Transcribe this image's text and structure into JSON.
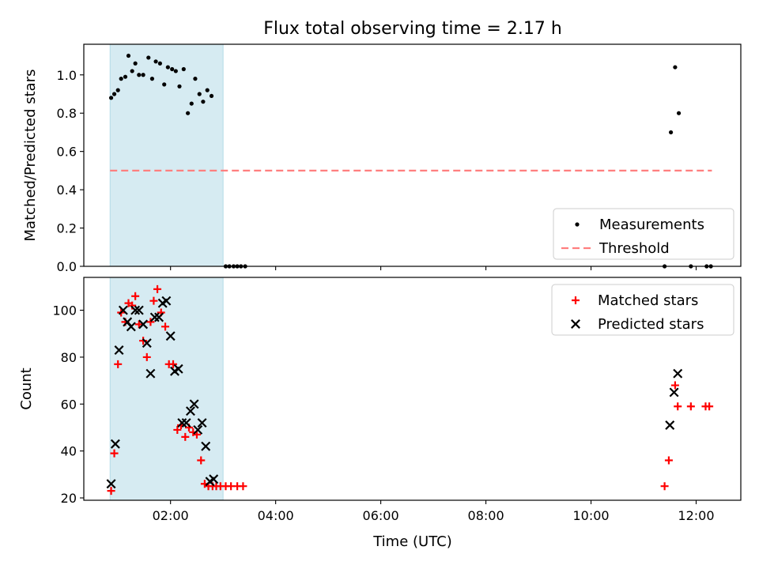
{
  "chart_data": {
    "title": "Flux total observing time = 2.17 h",
    "xlabel": "Time (UTC)",
    "x_units": "hours UTC",
    "xlim": [
      0.35,
      12.85
    ],
    "xticks": [
      {
        "value": 2,
        "label": "02:00"
      },
      {
        "value": 4,
        "label": "04:00"
      },
      {
        "value": 6,
        "label": "06:00"
      },
      {
        "value": 8,
        "label": "08:00"
      },
      {
        "value": 10,
        "label": "10:00"
      },
      {
        "value": 12,
        "label": "12:00"
      }
    ],
    "highlight_span": {
      "x0": 0.85,
      "x1": 3.0,
      "color": "#add8e6"
    },
    "panels": [
      {
        "type": "scatter",
        "ylabel": "Matched/Predicted stars",
        "ylim": [
          0,
          1.16
        ],
        "yticks": [
          0.0,
          0.2,
          0.4,
          0.6,
          0.8,
          1.0
        ],
        "ytick_labels": [
          "0.0",
          "0.2",
          "0.4",
          "0.6",
          "0.8",
          "1.0"
        ],
        "legend_position": "lower-right",
        "series": [
          {
            "name": "Measurements",
            "marker": "dot",
            "color": "#000000",
            "points": [
              [
                0.87,
                0.88
              ],
              [
                0.93,
                0.9
              ],
              [
                1.0,
                0.92
              ],
              [
                1.06,
                0.98
              ],
              [
                1.14,
                0.99
              ],
              [
                1.2,
                1.1
              ],
              [
                1.27,
                1.02
              ],
              [
                1.33,
                1.06
              ],
              [
                1.4,
                1.0
              ],
              [
                1.48,
                1.0
              ],
              [
                1.58,
                1.09
              ],
              [
                1.65,
                0.98
              ],
              [
                1.72,
                1.07
              ],
              [
                1.8,
                1.06
              ],
              [
                1.88,
                0.95
              ],
              [
                1.95,
                1.04
              ],
              [
                2.03,
                1.03
              ],
              [
                2.1,
                1.02
              ],
              [
                2.17,
                0.94
              ],
              [
                2.25,
                1.03
              ],
              [
                2.33,
                0.8
              ],
              [
                2.4,
                0.85
              ],
              [
                2.47,
                0.98
              ],
              [
                2.55,
                0.9
              ],
              [
                2.62,
                0.86
              ],
              [
                2.7,
                0.92
              ],
              [
                2.78,
                0.89
              ],
              [
                3.05,
                0.0
              ],
              [
                3.12,
                0.0
              ],
              [
                3.2,
                0.0
              ],
              [
                3.27,
                0.0
              ],
              [
                3.34,
                0.0
              ],
              [
                3.42,
                0.0
              ],
              [
                11.4,
                0.0
              ],
              [
                11.52,
                0.7
              ],
              [
                11.6,
                1.04
              ],
              [
                11.67,
                0.8
              ],
              [
                11.9,
                0.0
              ],
              [
                12.2,
                0.0
              ],
              [
                12.28,
                0.0
              ]
            ]
          },
          {
            "name": "Threshold",
            "marker": "dashed-line",
            "color": "#ff7f7f",
            "x": [
              0.85,
              12.3
            ],
            "y": [
              0.5,
              0.5
            ]
          }
        ]
      },
      {
        "type": "scatter",
        "ylabel": "Count",
        "ylim": [
          19,
          114
        ],
        "yticks": [
          20,
          40,
          60,
          80,
          100
        ],
        "ytick_labels": [
          "20",
          "40",
          "60",
          "80",
          "100"
        ],
        "legend_position": "upper-right",
        "series": [
          {
            "name": "Matched stars",
            "marker": "plus",
            "color": "#ff0000",
            "points": [
              [
                0.87,
                23
              ],
              [
                0.93,
                39
              ],
              [
                1.0,
                77
              ],
              [
                1.06,
                99
              ],
              [
                1.14,
                95
              ],
              [
                1.2,
                103
              ],
              [
                1.27,
                102
              ],
              [
                1.33,
                106
              ],
              [
                1.4,
                94
              ],
              [
                1.48,
                87
              ],
              [
                1.55,
                80
              ],
              [
                1.62,
                95
              ],
              [
                1.68,
                104
              ],
              [
                1.75,
                109
              ],
              [
                1.82,
                99
              ],
              [
                1.9,
                93
              ],
              [
                1.97,
                77
              ],
              [
                2.05,
                77
              ],
              [
                2.13,
                49
              ],
              [
                2.2,
                51
              ],
              [
                2.28,
                46
              ],
              [
                2.35,
                50
              ],
              [
                2.43,
                48
              ],
              [
                2.5,
                47
              ],
              [
                2.58,
                36
              ],
              [
                2.65,
                26
              ],
              [
                2.72,
                25
              ],
              [
                2.8,
                25
              ],
              [
                2.87,
                25
              ],
              [
                2.95,
                25
              ],
              [
                3.05,
                25
              ],
              [
                3.15,
                25
              ],
              [
                3.27,
                25
              ],
              [
                3.38,
                25
              ],
              [
                11.4,
                25
              ],
              [
                11.48,
                36
              ],
              [
                11.6,
                68
              ],
              [
                11.65,
                59
              ],
              [
                11.9,
                59
              ],
              [
                12.18,
                59
              ],
              [
                12.25,
                59
              ]
            ]
          },
          {
            "name": "Predicted stars",
            "marker": "x",
            "color": "#000000",
            "points": [
              [
                0.87,
                26
              ],
              [
                0.95,
                43
              ],
              [
                1.02,
                83
              ],
              [
                1.1,
                100
              ],
              [
                1.18,
                95
              ],
              [
                1.25,
                93
              ],
              [
                1.33,
                100
              ],
              [
                1.4,
                100
              ],
              [
                1.48,
                94
              ],
              [
                1.55,
                86
              ],
              [
                1.62,
                73
              ],
              [
                1.7,
                97
              ],
              [
                1.78,
                97
              ],
              [
                1.85,
                103
              ],
              [
                1.92,
                104
              ],
              [
                2.0,
                89
              ],
              [
                2.08,
                74
              ],
              [
                2.15,
                75
              ],
              [
                2.22,
                52
              ],
              [
                2.3,
                52
              ],
              [
                2.38,
                57
              ],
              [
                2.45,
                60
              ],
              [
                2.52,
                49
              ],
              [
                2.6,
                52
              ],
              [
                2.67,
                42
              ],
              [
                2.75,
                27
              ],
              [
                2.82,
                28
              ],
              [
                11.5,
                51
              ],
              [
                11.58,
                65
              ],
              [
                11.65,
                73
              ]
            ]
          }
        ]
      }
    ]
  }
}
